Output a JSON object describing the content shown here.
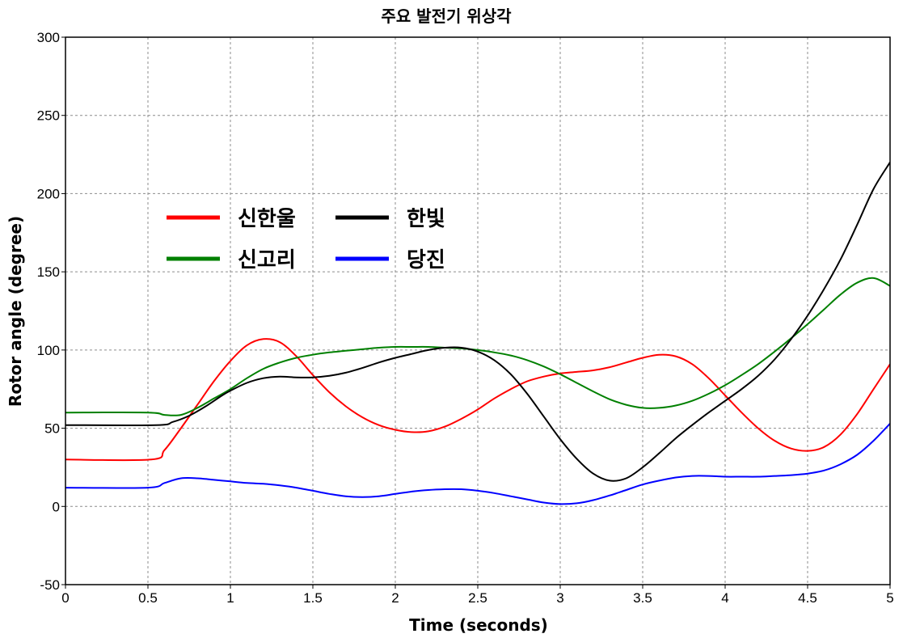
{
  "chart_data": {
    "type": "line",
    "title": "주요 발전기 위상각",
    "xlabel": "Time (seconds)",
    "ylabel": "Rotor angle (degree)",
    "xlim": [
      0,
      5
    ],
    "ylim": [
      -50,
      300
    ],
    "xticks": [
      "0",
      "0.5",
      "1",
      "1.5",
      "2",
      "2.5",
      "3",
      "3.5",
      "4",
      "4.5",
      "5"
    ],
    "yticks": [
      "-50",
      "0",
      "50",
      "100",
      "150",
      "200",
      "250",
      "300"
    ],
    "grid": true,
    "legend_position": "upper-left",
    "series": [
      {
        "name": "신한울",
        "color": "#ff0000",
        "points": [
          [
            0,
            30
          ],
          [
            0.52,
            30
          ],
          [
            0.6,
            36
          ],
          [
            0.7,
            50
          ],
          [
            0.8,
            65
          ],
          [
            0.9,
            80
          ],
          [
            1.0,
            93
          ],
          [
            1.1,
            103
          ],
          [
            1.2,
            107
          ],
          [
            1.3,
            105
          ],
          [
            1.4,
            96
          ],
          [
            1.5,
            84
          ],
          [
            1.6,
            73
          ],
          [
            1.7,
            64
          ],
          [
            1.8,
            57
          ],
          [
            1.9,
            52
          ],
          [
            2.0,
            49
          ],
          [
            2.1,
            47.5
          ],
          [
            2.2,
            48
          ],
          [
            2.3,
            51
          ],
          [
            2.4,
            56
          ],
          [
            2.5,
            62
          ],
          [
            2.6,
            69
          ],
          [
            2.7,
            75
          ],
          [
            2.8,
            80
          ],
          [
            2.9,
            83
          ],
          [
            3.0,
            85
          ],
          [
            3.1,
            86
          ],
          [
            3.2,
            87
          ],
          [
            3.3,
            89
          ],
          [
            3.4,
            92
          ],
          [
            3.5,
            95
          ],
          [
            3.6,
            97
          ],
          [
            3.7,
            96
          ],
          [
            3.8,
            91
          ],
          [
            3.9,
            82
          ],
          [
            4.0,
            71
          ],
          [
            4.1,
            60
          ],
          [
            4.2,
            50
          ],
          [
            4.3,
            42
          ],
          [
            4.4,
            37
          ],
          [
            4.5,
            35.5
          ],
          [
            4.6,
            38
          ],
          [
            4.7,
            46
          ],
          [
            4.8,
            59
          ],
          [
            4.9,
            75
          ],
          [
            5.0,
            91
          ]
        ]
      },
      {
        "name": "신고리",
        "color": "#008000",
        "points": [
          [
            0,
            60
          ],
          [
            0.5,
            60
          ],
          [
            0.6,
            58.5
          ],
          [
            0.7,
            58.5
          ],
          [
            0.8,
            63
          ],
          [
            0.9,
            69
          ],
          [
            1.0,
            75
          ],
          [
            1.1,
            82
          ],
          [
            1.2,
            88
          ],
          [
            1.3,
            92
          ],
          [
            1.4,
            95
          ],
          [
            1.5,
            97
          ],
          [
            1.6,
            98.5
          ],
          [
            1.7,
            99.5
          ],
          [
            1.8,
            100.5
          ],
          [
            1.9,
            101.5
          ],
          [
            2.0,
            102
          ],
          [
            2.1,
            102
          ],
          [
            2.2,
            102
          ],
          [
            2.3,
            101.5
          ],
          [
            2.4,
            101
          ],
          [
            2.5,
            100
          ],
          [
            2.6,
            98.5
          ],
          [
            2.7,
            96.5
          ],
          [
            2.8,
            93.5
          ],
          [
            2.9,
            89.5
          ],
          [
            3.0,
            84.5
          ],
          [
            3.1,
            79
          ],
          [
            3.2,
            73.5
          ],
          [
            3.3,
            68.5
          ],
          [
            3.4,
            65
          ],
          [
            3.5,
            63
          ],
          [
            3.6,
            63
          ],
          [
            3.7,
            64.5
          ],
          [
            3.8,
            67.5
          ],
          [
            3.9,
            72
          ],
          [
            4.0,
            77.5
          ],
          [
            4.1,
            84
          ],
          [
            4.2,
            91
          ],
          [
            4.3,
            99
          ],
          [
            4.4,
            107.5
          ],
          [
            4.5,
            116.5
          ],
          [
            4.6,
            126
          ],
          [
            4.7,
            135.5
          ],
          [
            4.8,
            143
          ],
          [
            4.9,
            146
          ],
          [
            5.0,
            141
          ]
        ]
      },
      {
        "name": "한빛",
        "color": "#000000",
        "points": [
          [
            0,
            52
          ],
          [
            0.55,
            52
          ],
          [
            0.65,
            54
          ],
          [
            0.75,
            58
          ],
          [
            0.85,
            64
          ],
          [
            0.95,
            71
          ],
          [
            1.0,
            74
          ],
          [
            1.1,
            79
          ],
          [
            1.2,
            82
          ],
          [
            1.3,
            83
          ],
          [
            1.4,
            82.5
          ],
          [
            1.5,
            82.5
          ],
          [
            1.6,
            83.5
          ],
          [
            1.7,
            85.5
          ],
          [
            1.8,
            88.5
          ],
          [
            1.9,
            92
          ],
          [
            2.0,
            95
          ],
          [
            2.1,
            97.5
          ],
          [
            2.2,
            100
          ],
          [
            2.3,
            101.5
          ],
          [
            2.4,
            101.5
          ],
          [
            2.5,
            99
          ],
          [
            2.6,
            93.5
          ],
          [
            2.7,
            84.5
          ],
          [
            2.8,
            72
          ],
          [
            2.9,
            57.5
          ],
          [
            3.0,
            43
          ],
          [
            3.1,
            30.5
          ],
          [
            3.2,
            21
          ],
          [
            3.3,
            16.5
          ],
          [
            3.4,
            18
          ],
          [
            3.5,
            25
          ],
          [
            3.6,
            34
          ],
          [
            3.7,
            43.5
          ],
          [
            3.8,
            52
          ],
          [
            3.9,
            60
          ],
          [
            4.0,
            67.5
          ],
          [
            4.1,
            75
          ],
          [
            4.2,
            83.5
          ],
          [
            4.3,
            94
          ],
          [
            4.4,
            107
          ],
          [
            4.5,
            122
          ],
          [
            4.6,
            139
          ],
          [
            4.7,
            158
          ],
          [
            4.8,
            180
          ],
          [
            4.9,
            203
          ],
          [
            5.0,
            220
          ]
        ]
      },
      {
        "name": "당진",
        "color": "#0000ff",
        "points": [
          [
            0,
            12
          ],
          [
            0.5,
            12
          ],
          [
            0.6,
            15
          ],
          [
            0.7,
            18
          ],
          [
            0.8,
            18
          ],
          [
            0.9,
            17
          ],
          [
            1.0,
            16
          ],
          [
            1.1,
            15
          ],
          [
            1.2,
            14.5
          ],
          [
            1.3,
            13.5
          ],
          [
            1.4,
            12
          ],
          [
            1.5,
            10
          ],
          [
            1.6,
            8
          ],
          [
            1.7,
            6.5
          ],
          [
            1.8,
            6
          ],
          [
            1.9,
            6.5
          ],
          [
            2.0,
            8
          ],
          [
            2.1,
            9.5
          ],
          [
            2.2,
            10.5
          ],
          [
            2.3,
            11
          ],
          [
            2.4,
            11
          ],
          [
            2.5,
            10
          ],
          [
            2.6,
            8.5
          ],
          [
            2.7,
            6.5
          ],
          [
            2.8,
            4.5
          ],
          [
            2.9,
            2.5
          ],
          [
            3.0,
            1.5
          ],
          [
            3.1,
            2
          ],
          [
            3.2,
            4
          ],
          [
            3.3,
            7
          ],
          [
            3.4,
            10.5
          ],
          [
            3.5,
            14
          ],
          [
            3.6,
            16.5
          ],
          [
            3.7,
            18.5
          ],
          [
            3.8,
            19.5
          ],
          [
            3.9,
            19.5
          ],
          [
            4.0,
            19
          ],
          [
            4.1,
            19
          ],
          [
            4.2,
            19
          ],
          [
            4.3,
            19.5
          ],
          [
            4.4,
            20
          ],
          [
            4.5,
            21
          ],
          [
            4.6,
            23
          ],
          [
            4.7,
            27
          ],
          [
            4.8,
            33
          ],
          [
            4.9,
            42
          ],
          [
            5.0,
            53
          ]
        ]
      }
    ]
  }
}
